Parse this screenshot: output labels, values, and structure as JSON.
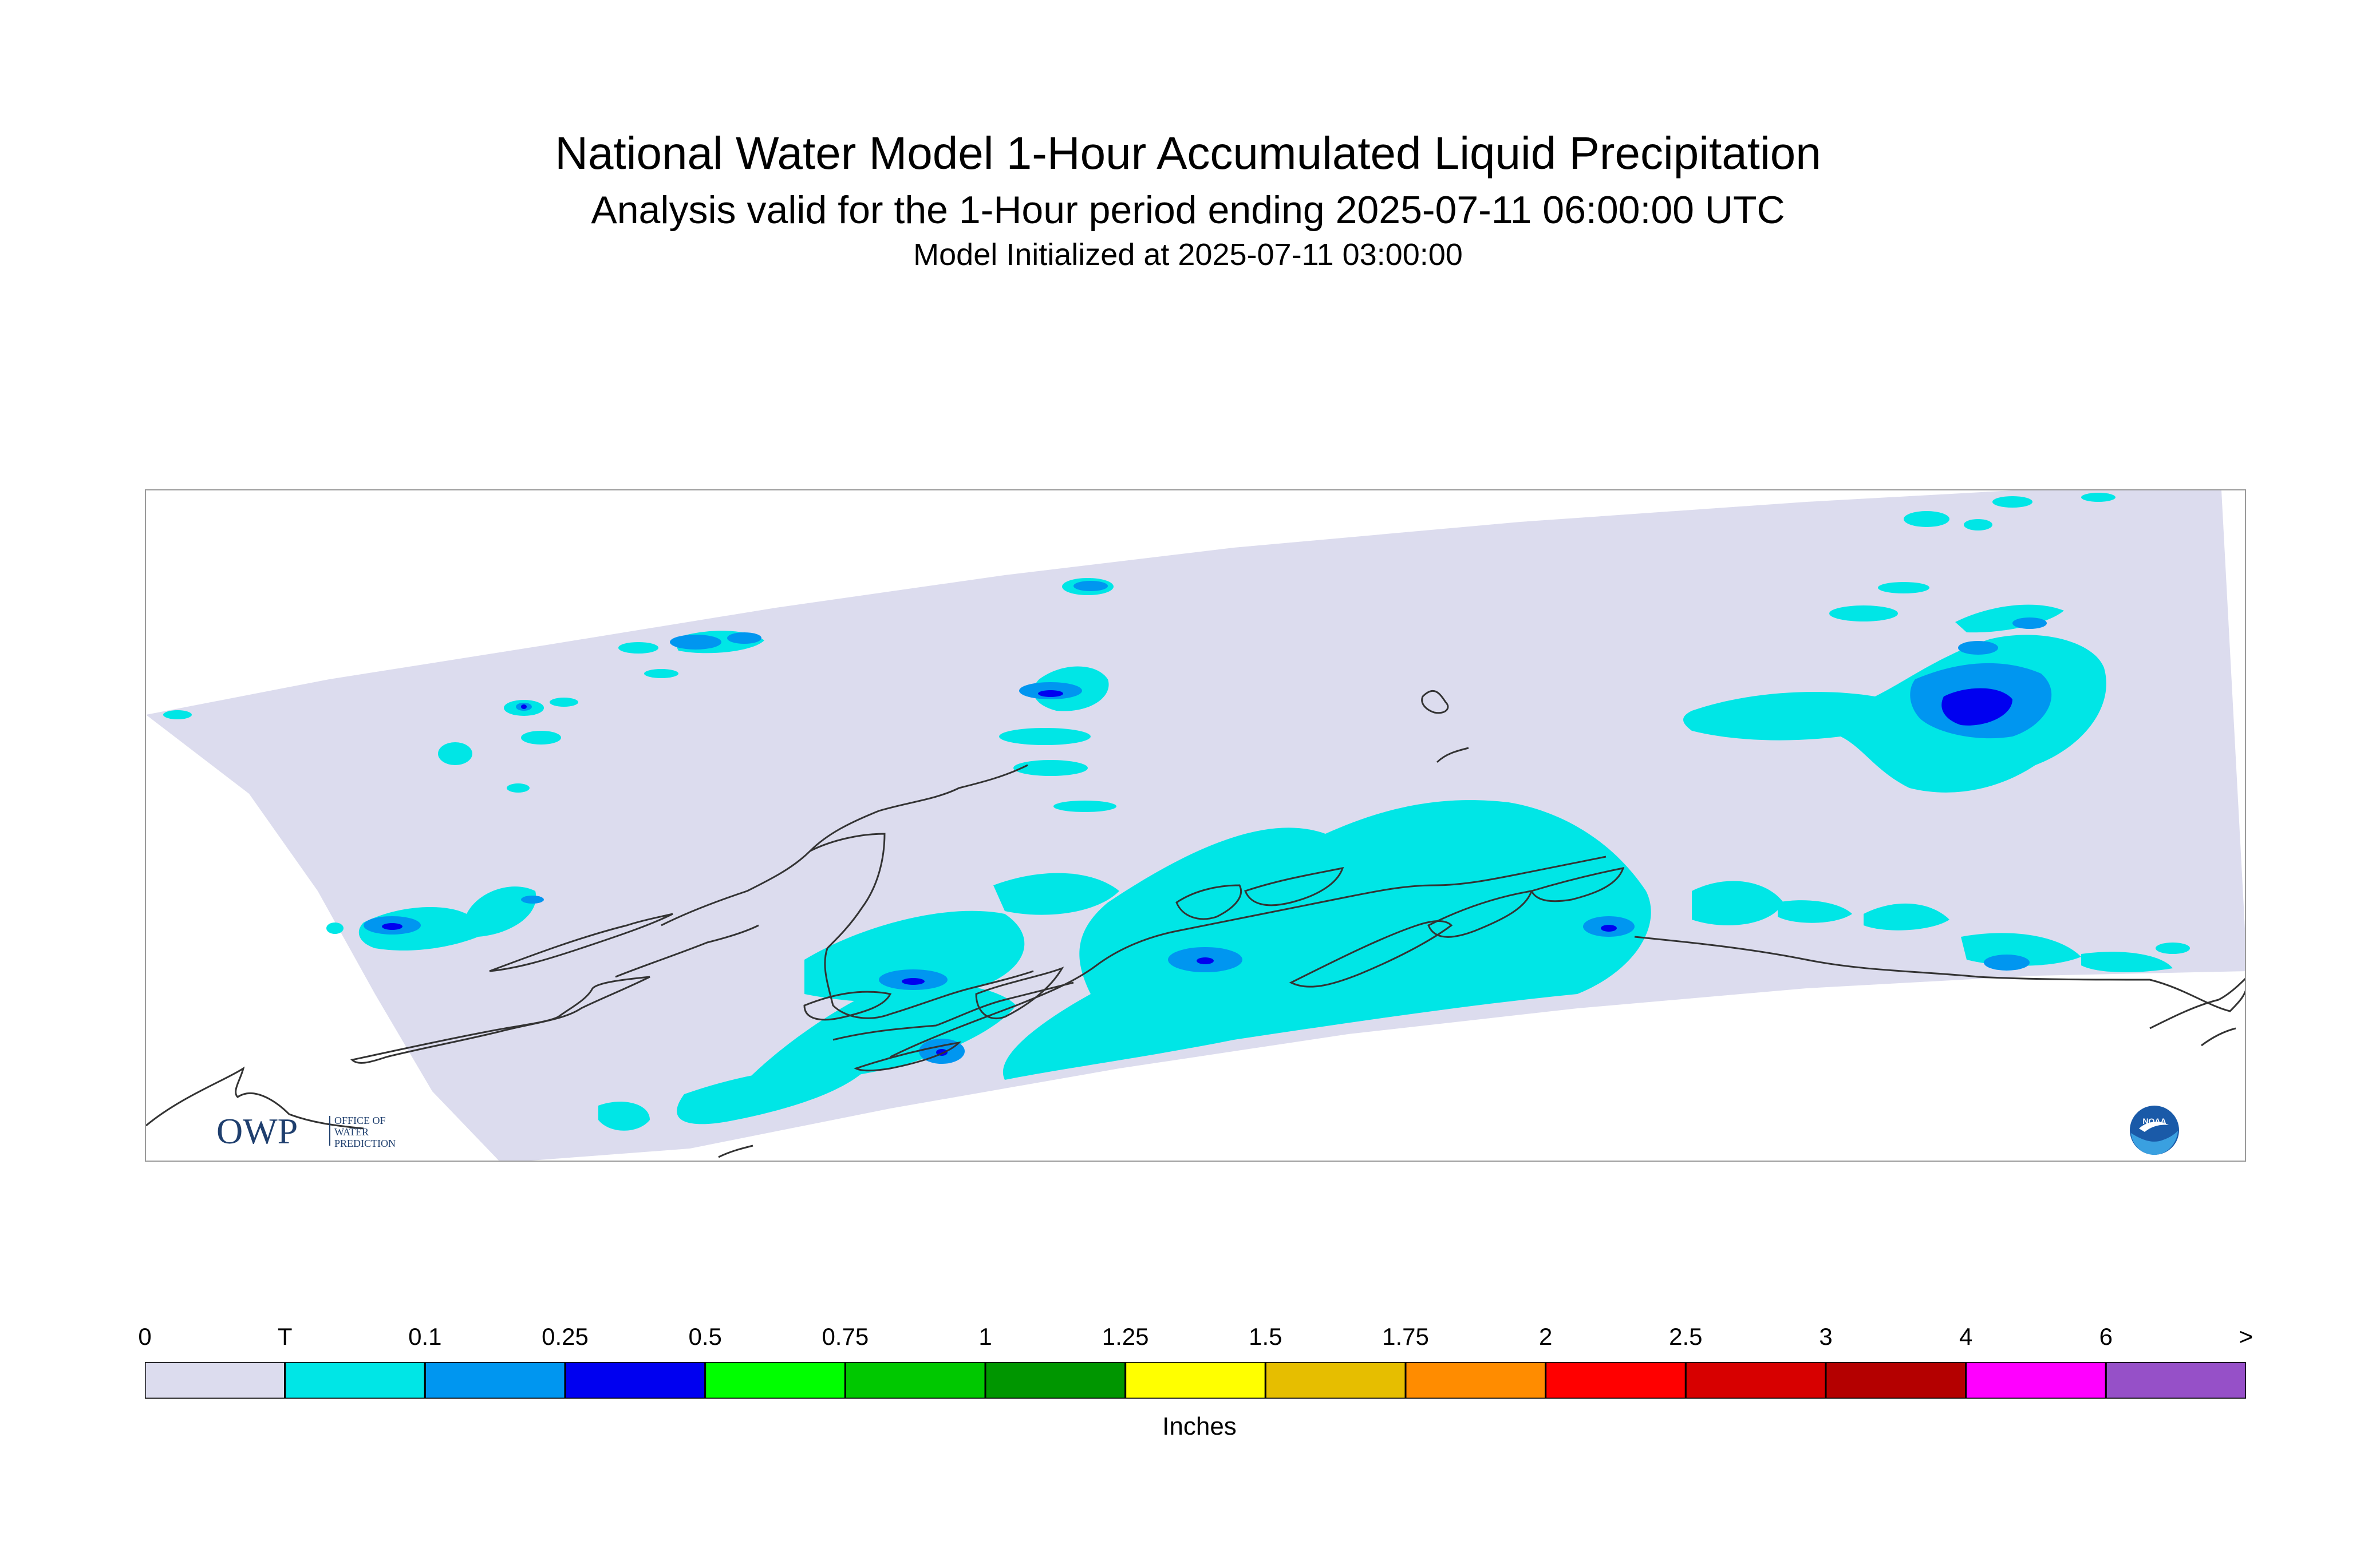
{
  "header": {
    "title": "National Water Model 1-Hour Accumulated Liquid Precipitation",
    "subtitle": "Analysis valid for the 1-Hour period ending 2025-07-11 06:00:00 UTC",
    "init": "Model Initialized at 2025-07-11 03:00:00"
  },
  "legend": {
    "ticks": [
      "0",
      "T",
      "0.1",
      "0.25",
      "0.5",
      "0.75",
      "1",
      "1.25",
      "1.5",
      "1.75",
      "2",
      "2.5",
      "3",
      "4",
      "6",
      ">"
    ],
    "colors": [
      "#dcdcee",
      "#00e6e6",
      "#0096f0",
      "#0000f0",
      "#00ff00",
      "#00c800",
      "#009600",
      "#ffff00",
      "#e6be00",
      "#ff8c00",
      "#ff0000",
      "#d70000",
      "#b40000",
      "#ff00ff",
      "#9650c8"
    ],
    "units": "Inches"
  },
  "logos": {
    "owp_mark": "OWP",
    "owp_text": [
      "OFFICE OF",
      "WATER",
      "PREDICTION"
    ],
    "noaa_text": "NOAA"
  },
  "map": {
    "region": "Alaska",
    "domain_color": "#dcdcee",
    "coastline_color": "#333333"
  }
}
